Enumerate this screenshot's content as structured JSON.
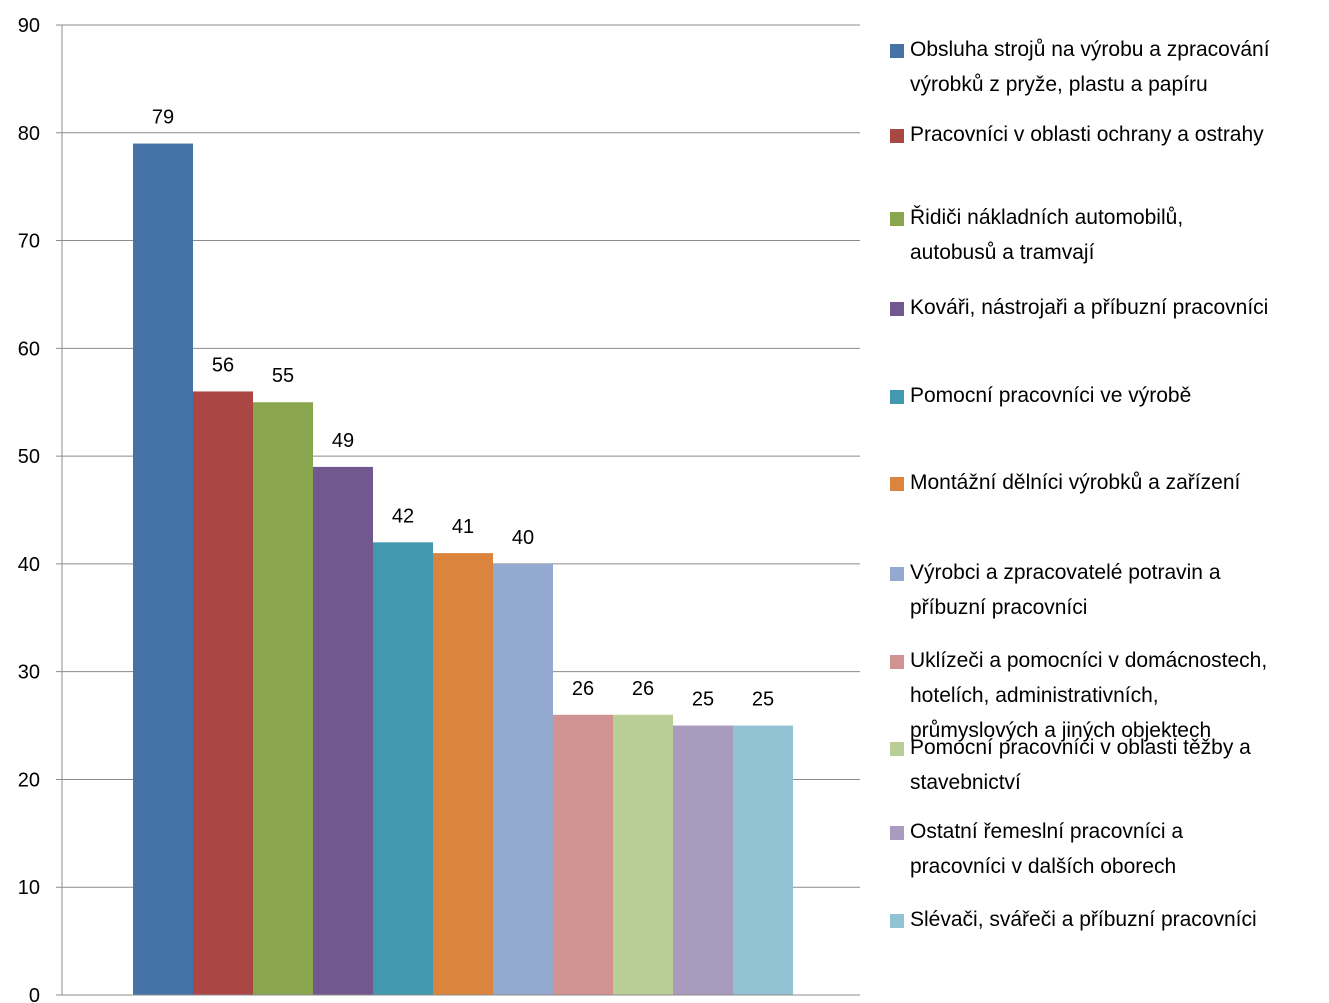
{
  "chart_data": {
    "type": "bar",
    "title": "",
    "xlabel": "",
    "ylabel": "",
    "ylim": [
      0,
      90
    ],
    "yticks": [
      0,
      10,
      20,
      30,
      40,
      50,
      60,
      70,
      80,
      90
    ],
    "grid": true,
    "legend_position": "right",
    "data_labels": true,
    "categories": [
      "Obsluha strojů na výrobu a zpracování výrobků z pryže, plastu a papíru",
      "Pracovníci v oblasti ochrany a ostrahy",
      "Řidiči nákladních automobilů, autobusů a tramvají",
      "Kováři, nástrojaři a příbuzní pracovníci",
      "Pomocní pracovníci ve výrobě",
      "Montážní dělníci výrobků a zařízení",
      "Výrobci a zpracovatelé potravin a příbuzní pracovníci",
      "Uklízeči a pomocníci v domácnostech, hotelích, administrativních, průmyslových a jiných objektech",
      "Pomocní pracovníci v oblasti těžby a stavebnictví",
      "Ostatní řemeslní pracovníci a pracovníci v dalších oborech",
      "Slévači, svářeči a příbuzní pracovníci"
    ],
    "values": [
      79,
      56,
      55,
      49,
      42,
      41,
      40,
      26,
      26,
      25,
      25
    ],
    "colors": [
      "#4572A7",
      "#AA4643",
      "#89A54E",
      "#71588F",
      "#4198AF",
      "#DB843D",
      "#93A9CF",
      "#D19392",
      "#B9CD96",
      "#A99BBD",
      "#92C3D4"
    ],
    "legend": [
      {
        "lines": [
          "Obsluha strojů na výrobu a zpracování",
          "výrobků z pryže, plastu a papíru"
        ]
      },
      {
        "lines": [
          "Pracovníci v oblasti ochrany a ostrahy"
        ]
      },
      {
        "lines": [
          "Řidiči nákladních automobilů,",
          "autobusů a tramvají"
        ]
      },
      {
        "lines": [
          "Kováři, nástrojaři a příbuzní pracovníci"
        ]
      },
      {
        "lines": [
          "Pomocní pracovníci ve výrobě"
        ]
      },
      {
        "lines": [
          "Montážní dělníci výrobků a zařízení"
        ]
      },
      {
        "lines": [
          "Výrobci a zpracovatelé potravin a",
          "příbuzní pracovníci"
        ]
      },
      {
        "lines": [
          "Uklízeči a pomocníci v domácnostech,",
          "hotelích, administrativních,",
          "průmyslových a jiných objektech"
        ]
      },
      {
        "lines": [
          "Pomocní pracovníci v oblasti těžby a",
          "stavebnictví"
        ]
      },
      {
        "lines": [
          "Ostatní řemeslní pracovníci a",
          "pracovníci v dalších oborech"
        ]
      },
      {
        "lines": [
          "Slévači, svářeči a příbuzní pracovníci"
        ]
      }
    ]
  }
}
